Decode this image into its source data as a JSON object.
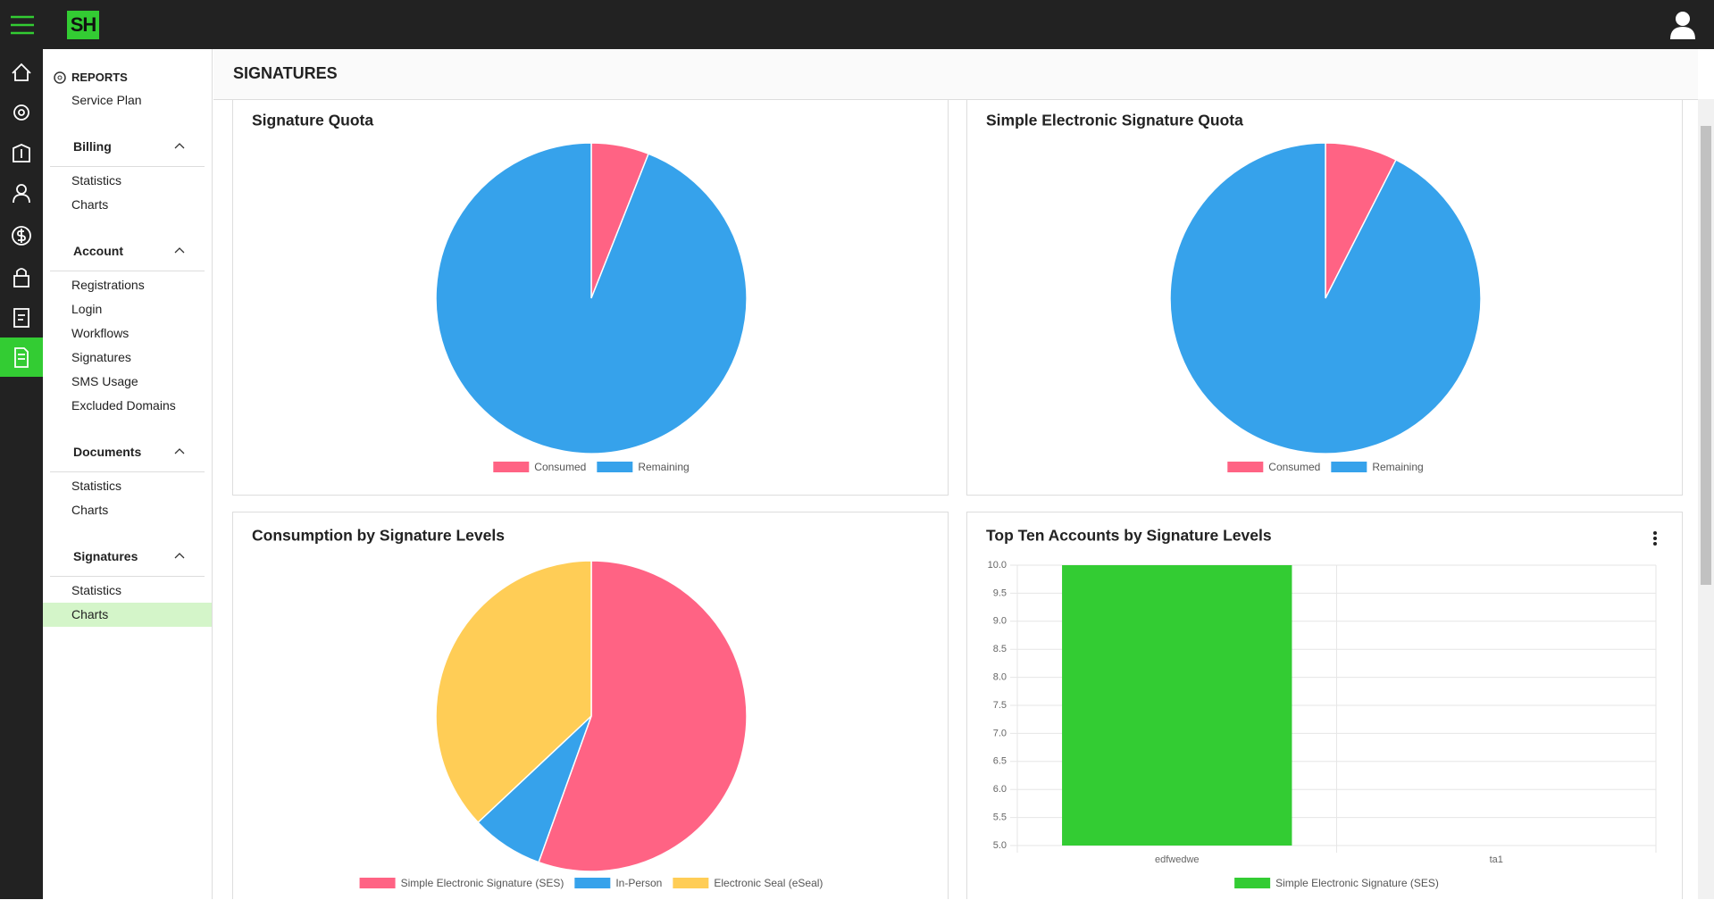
{
  "topbar": {
    "logo": "SH"
  },
  "header": {
    "title": "SIGNATURES"
  },
  "sidebar": {
    "reports": "REPORTS",
    "service_plan": "Service Plan",
    "sections": [
      {
        "title": "Billing",
        "items": [
          "Statistics",
          "Charts"
        ]
      },
      {
        "title": "Account",
        "items": [
          "Registrations",
          "Login",
          "Workflows",
          "Signatures",
          "SMS Usage",
          "Excluded Domains"
        ]
      },
      {
        "title": "Documents",
        "items": [
          "Statistics",
          "Charts"
        ]
      },
      {
        "title": "Signatures",
        "items": [
          "Statistics",
          "Charts"
        ]
      }
    ]
  },
  "chart_data": [
    {
      "type": "pie",
      "title": "Signature Quota",
      "categories": [
        "Consumed",
        "Remaining"
      ],
      "values": [
        6,
        94
      ],
      "colors": [
        "#ff6384",
        "#36a2eb"
      ]
    },
    {
      "type": "pie",
      "title": "Simple Electronic Signature Quota",
      "categories": [
        "Consumed",
        "Remaining"
      ],
      "values": [
        7.5,
        92.5
      ],
      "colors": [
        "#ff6384",
        "#36a2eb"
      ]
    },
    {
      "type": "pie",
      "title": "Consumption by Signature Levels",
      "categories": [
        "Simple Electronic Signature (SES)",
        "In-Person",
        "Electronic Seal (eSeal)"
      ],
      "values": [
        55.5,
        7.5,
        37
      ],
      "colors": [
        "#ff6384",
        "#36a2eb",
        "#ffcd56"
      ]
    },
    {
      "type": "bar",
      "title": "Top Ten Accounts by Signature Levels",
      "categories": [
        "edfwedwe",
        "ta1"
      ],
      "series": [
        {
          "name": "Simple Electronic Signature (SES)",
          "color": "#33cc33",
          "values": [
            10,
            null
          ]
        }
      ],
      "ylim": [
        5,
        10
      ],
      "yticks": [
        {
          "value": 5,
          "label": "5.0"
        },
        {
          "value": 5.5,
          "label": "5.5"
        },
        {
          "value": 6,
          "label": "6.0"
        },
        {
          "value": 6.5,
          "label": "6.5"
        },
        {
          "value": 7,
          "label": "7.0"
        },
        {
          "value": 7.5,
          "label": "7.5"
        },
        {
          "value": 8,
          "label": "8.0"
        },
        {
          "value": 8.5,
          "label": "8.5"
        },
        {
          "value": 9,
          "label": "9.0"
        },
        {
          "value": 9.5,
          "label": "9.5"
        },
        {
          "value": 10,
          "label": "10.0"
        }
      ],
      "grid": true
    }
  ]
}
